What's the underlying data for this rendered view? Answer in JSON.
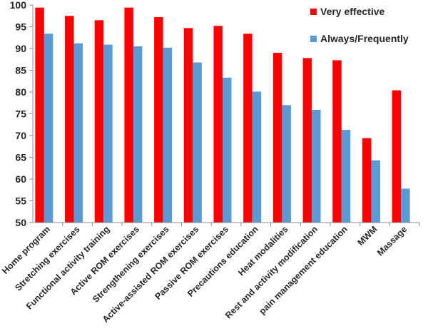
{
  "chart_data": {
    "type": "bar",
    "title": "",
    "xlabel": "",
    "ylabel": "",
    "ylim": [
      50,
      100
    ],
    "yticks": [
      50,
      55,
      60,
      65,
      70,
      75,
      80,
      85,
      90,
      95,
      100
    ],
    "grid": false,
    "legend_position": "top-right",
    "categories": [
      "Home program",
      "Stretching exercises",
      "Functional activity training",
      "Active ROM exercises",
      "Strengthening exercises",
      "Active-assisted ROM exercises",
      "Passive ROM exercises",
      "Precautions education",
      "Heat modalities",
      "Rest and activity modification",
      "pain management education",
      "MWM",
      "Massage"
    ],
    "series": [
      {
        "name": "Very effective",
        "color": "#ff0000",
        "values": [
          99.4,
          97.5,
          96.5,
          99.4,
          97.2,
          94.7,
          95.2,
          93.4,
          89.0,
          87.8,
          87.3,
          69.4,
          80.4
        ]
      },
      {
        "name": "Always/Frequently",
        "color": "#5b9bd5",
        "values": [
          93.4,
          91.2,
          90.9,
          90.5,
          90.2,
          86.8,
          83.3,
          80.1,
          77.0,
          75.9,
          71.3,
          64.3,
          57.8
        ]
      }
    ]
  }
}
